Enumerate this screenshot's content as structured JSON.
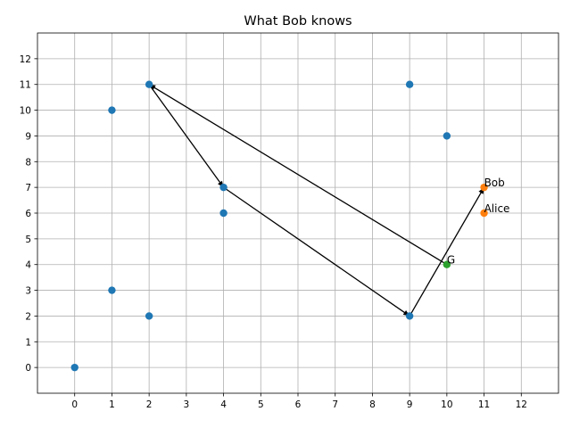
{
  "chart_data": {
    "type": "scatter",
    "title": "What Bob knows",
    "xlabel": "",
    "ylabel": "",
    "xlim": [
      -1,
      13
    ],
    "ylim": [
      -1,
      13
    ],
    "xticks": [
      0,
      1,
      2,
      3,
      4,
      5,
      6,
      7,
      8,
      9,
      10,
      11,
      12
    ],
    "yticks": [
      0,
      1,
      2,
      3,
      4,
      5,
      6,
      7,
      8,
      9,
      10,
      11,
      12
    ],
    "grid": true,
    "colors": {
      "points": "#1f77b4",
      "agents": "#ff7f0e",
      "goal": "#2ca02c",
      "arrow": "#000000"
    },
    "series": [
      {
        "color": "#1f77b4",
        "x": [
          0,
          1,
          1,
          2,
          2,
          4,
          4,
          9,
          9,
          10
        ],
        "y": [
          0,
          3,
          10,
          2,
          11,
          6,
          7,
          2,
          11,
          9
        ]
      },
      {
        "color": "#ff7f0e",
        "x": [
          11,
          11
        ],
        "y": [
          7,
          6
        ]
      },
      {
        "color": "#2ca02c",
        "x": [
          10
        ],
        "y": [
          4
        ]
      }
    ],
    "annotations": [
      {
        "text": "Bob",
        "x": 11,
        "y": 7
      },
      {
        "text": "Alice",
        "x": 11,
        "y": 6
      },
      {
        "text": "G",
        "x": 10,
        "y": 4
      }
    ],
    "arrows": [
      {
        "from": [
          10,
          4
        ],
        "to": [
          2,
          11
        ]
      },
      {
        "from": [
          2,
          11
        ],
        "to": [
          4,
          7
        ]
      },
      {
        "from": [
          4,
          7
        ],
        "to": [
          9,
          2
        ]
      },
      {
        "from": [
          9,
          2
        ],
        "to": [
          11,
          7
        ]
      }
    ]
  }
}
